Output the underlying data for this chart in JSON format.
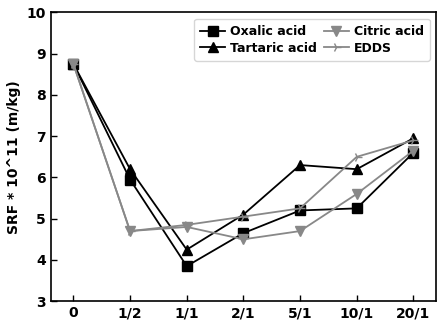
{
  "x_labels": [
    "0",
    "1/2",
    "1/1",
    "2/1",
    "5/1",
    "10/1",
    "20/1"
  ],
  "x_positions": [
    0,
    1,
    2,
    3,
    4,
    5,
    6
  ],
  "series": [
    {
      "name": "Oxalic acid",
      "values": [
        8.75,
        5.95,
        3.85,
        4.65,
        5.2,
        5.25,
        6.6
      ],
      "marker": "s",
      "color": "#000000",
      "linestyle": "-",
      "linewidth": 1.3
    },
    {
      "name": "Tartaric acid",
      "values": [
        8.75,
        6.2,
        4.25,
        5.1,
        6.3,
        6.2,
        6.95
      ],
      "marker": "^",
      "color": "#000000",
      "linestyle": "-",
      "linewidth": 1.3
    },
    {
      "name": "Citric acid",
      "values": [
        8.75,
        4.7,
        4.8,
        4.5,
        4.7,
        5.6,
        6.65
      ],
      "marker": "v",
      "color": "#888888",
      "linestyle": "-",
      "linewidth": 1.3
    },
    {
      "name": "EDDS",
      "values": [
        8.75,
        4.7,
        4.85,
        5.05,
        5.25,
        6.5,
        6.9
      ],
      "marker": "4",
      "color": "#888888",
      "linestyle": "-",
      "linewidth": 1.3
    }
  ],
  "ylabel": "SRF * 10^11 (m/kg)",
  "ylim": [
    3,
    10
  ],
  "yticks": [
    3,
    4,
    5,
    6,
    7,
    8,
    9,
    10
  ],
  "xlim": [
    -0.4,
    6.4
  ],
  "background_color": "#ffffff",
  "markersize": 7,
  "legend_fontsize": 9,
  "tick_fontsize": 10,
  "ylabel_fontsize": 10
}
